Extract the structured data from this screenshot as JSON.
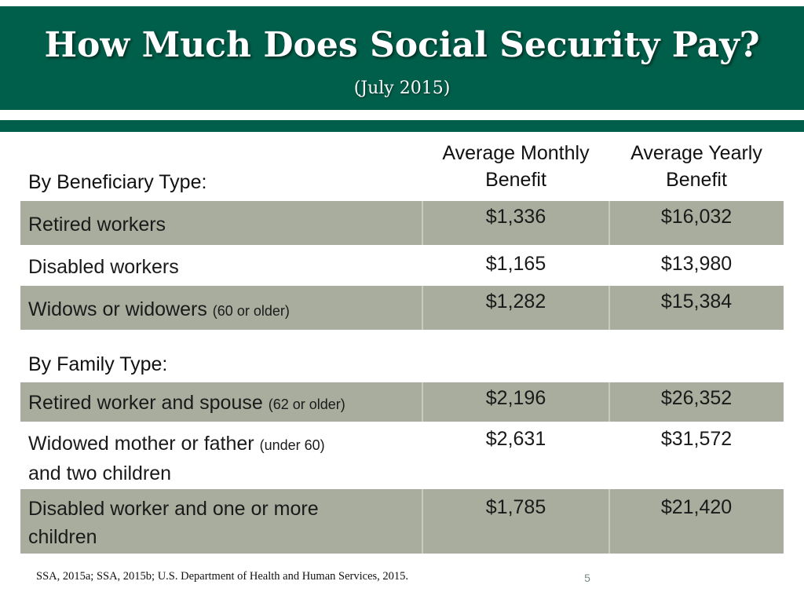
{
  "slide": {
    "title": "How Much Does Social Security Pay?",
    "subtitle": "(July 2015)",
    "page_number": "5",
    "source": "SSA, 2015a; SSA, 2015b; U.S. Department of Health and Human Services, 2015."
  },
  "table": {
    "columns": {
      "monthly": "Average Monthly Benefit",
      "yearly": "Average Yearly Benefit"
    },
    "beneficiary_section": {
      "label": "By Beneficiary Type:",
      "rows": [
        {
          "label": "Retired workers",
          "note": "",
          "monthly": "$1,336",
          "yearly": "$16,032"
        },
        {
          "label": "Disabled workers",
          "note": "",
          "monthly": "$1,165",
          "yearly": "$13,980"
        },
        {
          "label": "Widows or widowers",
          "note": "(60 or older)",
          "monthly": "$1,282",
          "yearly": "$15,384"
        }
      ]
    },
    "family_section": {
      "label": "By Family Type:",
      "rows": [
        {
          "label": "Retired worker and spouse",
          "note": "(62 or older)",
          "monthly": "$2,196",
          "yearly": "$26,352"
        },
        {
          "label": "Widowed mother or father",
          "note": "(under 60)",
          "label_line2": "and two children",
          "monthly": "$2,631",
          "yearly": "$31,572"
        },
        {
          "label": "Disabled worker and one or more",
          "label_line2": "children",
          "monthly": "$1,785",
          "yearly": "$21,420"
        }
      ]
    }
  },
  "colors": {
    "title_band": "#005f4a",
    "shaded_row": "#a9ad9e"
  }
}
